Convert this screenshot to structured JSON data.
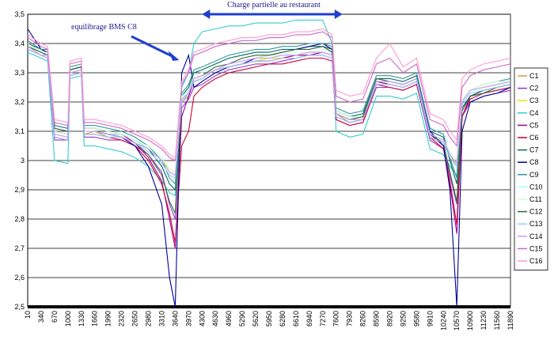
{
  "chart_data": {
    "type": "line",
    "title": "",
    "xlabel": "",
    "ylabel": "",
    "ylim": [
      2.5,
      3.5
    ],
    "yticks": [
      "2,5",
      "2,6",
      "2,7",
      "2,8",
      "2,9",
      "3",
      "3,1",
      "3,2",
      "3,3",
      "3,4",
      "3,5"
    ],
    "xtick_labels": [
      "10",
      "340",
      "670",
      "1000",
      "1330",
      "1660",
      "1990",
      "2320",
      "2650",
      "2980",
      "3310",
      "3640",
      "3970",
      "4300",
      "4630",
      "4960",
      "5290",
      "5620",
      "5950",
      "6280",
      "6610",
      "6940",
      "7270",
      "7600",
      "7930",
      "8260",
      "8590",
      "8920",
      "9250",
      "9580",
      "9910",
      "10240",
      "10570",
      "10900",
      "11230",
      "11560",
      "11890"
    ],
    "grid": "horizontal",
    "legend_position": "right",
    "annotations": [
      {
        "text": "Charge partielle au restaurant",
        "arrow": "double-horizontal",
        "x_range": [
          4300,
          7270
        ]
      },
      {
        "text": "equilibrage BMS C8",
        "arrow": "pointing",
        "target_series": "C8",
        "target_x": 3970
      }
    ],
    "x": [
      10,
      340,
      500,
      670,
      1000,
      1050,
      1330,
      1400,
      1660,
      1990,
      2320,
      2650,
      2980,
      3310,
      3500,
      3640,
      3800,
      3970,
      4100,
      4300,
      4630,
      4960,
      5290,
      5620,
      5950,
      6280,
      6610,
      6940,
      7270,
      7500,
      7600,
      7930,
      8260,
      8590,
      8920,
      9250,
      9580,
      9910,
      10240,
      10400,
      10570,
      10700,
      10900,
      11230,
      11560,
      11890
    ],
    "series": [
      {
        "name": "C1",
        "color": "#c8a040",
        "values": [
          3.4,
          3.37,
          3.36,
          3.08,
          3.07,
          3.3,
          3.31,
          3.09,
          3.1,
          3.08,
          3.08,
          3.06,
          3.04,
          3.0,
          2.96,
          2.95,
          3.2,
          3.22,
          3.27,
          3.28,
          3.31,
          3.32,
          3.33,
          3.34,
          3.34,
          3.35,
          3.36,
          3.36,
          3.37,
          3.36,
          3.16,
          3.13,
          3.14,
          3.27,
          3.26,
          3.25,
          3.27,
          3.08,
          3.06,
          3.02,
          2.98,
          3.2,
          3.24,
          3.25,
          3.26,
          3.27
        ]
      },
      {
        "name": "C2",
        "color": "#9933cc",
        "values": [
          3.38,
          3.36,
          3.35,
          3.07,
          3.07,
          3.29,
          3.3,
          3.08,
          3.08,
          3.07,
          3.07,
          3.05,
          3.02,
          2.96,
          2.85,
          2.8,
          3.18,
          3.21,
          3.25,
          3.26,
          3.29,
          3.31,
          3.32,
          3.33,
          3.33,
          3.34,
          3.35,
          3.36,
          3.36,
          3.35,
          3.14,
          3.12,
          3.13,
          3.25,
          3.25,
          3.24,
          3.26,
          3.07,
          3.04,
          2.95,
          2.85,
          3.15,
          3.2,
          3.22,
          3.23,
          3.24
        ]
      },
      {
        "name": "C3",
        "color": "#e6e600",
        "values": [
          3.39,
          3.36,
          3.36,
          3.09,
          3.08,
          3.3,
          3.31,
          3.1,
          3.1,
          3.09,
          3.08,
          3.06,
          3.04,
          3.0,
          2.97,
          2.96,
          3.2,
          3.23,
          3.27,
          3.28,
          3.31,
          3.32,
          3.33,
          3.34,
          3.35,
          3.35,
          3.36,
          3.37,
          3.37,
          3.36,
          3.16,
          3.14,
          3.14,
          3.27,
          3.27,
          3.26,
          3.28,
          3.09,
          3.07,
          3.03,
          3.0,
          3.2,
          3.24,
          3.25,
          3.26,
          3.27
        ]
      },
      {
        "name": "C4",
        "color": "#33cccc",
        "values": [
          3.37,
          3.35,
          3.34,
          3.0,
          2.99,
          3.28,
          3.29,
          3.05,
          3.05,
          3.04,
          3.03,
          3.01,
          2.98,
          2.93,
          2.89,
          2.88,
          3.25,
          3.3,
          3.4,
          3.44,
          3.45,
          3.46,
          3.46,
          3.47,
          3.47,
          3.47,
          3.48,
          3.48,
          3.48,
          3.4,
          3.1,
          3.08,
          3.09,
          3.22,
          3.22,
          3.21,
          3.23,
          3.04,
          3.02,
          2.98,
          2.95,
          3.18,
          3.22,
          3.23,
          3.24,
          3.25
        ]
      },
      {
        "name": "C5",
        "color": "#990099",
        "values": [
          3.39,
          3.37,
          3.36,
          3.1,
          3.09,
          3.3,
          3.31,
          3.1,
          3.1,
          3.09,
          3.09,
          3.06,
          3.01,
          2.93,
          2.8,
          2.7,
          3.15,
          3.22,
          3.27,
          3.28,
          3.31,
          3.32,
          3.33,
          3.34,
          3.34,
          3.35,
          3.36,
          3.36,
          3.37,
          3.36,
          3.15,
          3.13,
          3.14,
          3.27,
          3.26,
          3.25,
          3.27,
          3.09,
          3.05,
          2.92,
          2.75,
          3.15,
          3.22,
          3.24,
          3.25,
          3.26
        ]
      },
      {
        "name": "C6",
        "color": "#cc0033",
        "values": [
          3.38,
          3.36,
          3.35,
          3.08,
          3.07,
          3.29,
          3.3,
          3.09,
          3.09,
          3.08,
          3.07,
          3.05,
          3.0,
          2.92,
          2.82,
          2.72,
          3.05,
          3.1,
          3.22,
          3.25,
          3.28,
          3.3,
          3.31,
          3.32,
          3.33,
          3.33,
          3.34,
          3.35,
          3.35,
          3.34,
          3.14,
          3.12,
          3.13,
          3.26,
          3.25,
          3.24,
          3.26,
          3.08,
          3.04,
          2.93,
          2.78,
          3.15,
          3.21,
          3.23,
          3.24,
          3.25
        ]
      },
      {
        "name": "C7",
        "color": "#006666",
        "values": [
          3.4,
          3.38,
          3.37,
          3.11,
          3.1,
          3.31,
          3.32,
          3.11,
          3.11,
          3.1,
          3.09,
          3.07,
          3.04,
          2.98,
          2.92,
          2.9,
          3.22,
          3.25,
          3.3,
          3.31,
          3.33,
          3.35,
          3.36,
          3.37,
          3.37,
          3.38,
          3.38,
          3.39,
          3.39,
          3.38,
          3.17,
          3.15,
          3.16,
          3.28,
          3.28,
          3.27,
          3.29,
          3.1,
          3.08,
          3.0,
          2.92,
          3.18,
          3.22,
          3.24,
          3.25,
          3.26
        ]
      },
      {
        "name": "C8",
        "color": "#000099",
        "values": [
          3.45,
          3.38,
          3.37,
          3.12,
          3.11,
          3.31,
          3.32,
          3.1,
          3.1,
          3.09,
          3.08,
          3.05,
          2.98,
          2.85,
          2.6,
          2.5,
          3.3,
          3.36,
          3.25,
          3.27,
          3.3,
          3.32,
          3.33,
          3.35,
          3.36,
          3.37,
          3.38,
          3.39,
          3.4,
          3.38,
          3.16,
          3.14,
          3.15,
          3.28,
          3.27,
          3.26,
          3.28,
          3.1,
          3.05,
          2.9,
          2.5,
          3.1,
          3.2,
          3.22,
          3.23,
          3.25
        ]
      },
      {
        "name": "C9",
        "color": "#339999",
        "values": [
          3.41,
          3.38,
          3.38,
          3.12,
          3.11,
          3.32,
          3.33,
          3.12,
          3.12,
          3.11,
          3.1,
          3.08,
          3.05,
          3.0,
          2.94,
          2.92,
          3.23,
          3.26,
          3.31,
          3.32,
          3.34,
          3.36,
          3.37,
          3.38,
          3.38,
          3.39,
          3.39,
          3.4,
          3.4,
          3.39,
          3.18,
          3.16,
          3.17,
          3.29,
          3.29,
          3.28,
          3.3,
          3.11,
          3.09,
          3.01,
          2.94,
          3.2,
          3.24,
          3.26,
          3.27,
          3.28
        ]
      },
      {
        "name": "C10",
        "color": "#99ffff",
        "values": [
          3.39,
          3.37,
          3.36,
          3.09,
          3.08,
          3.3,
          3.31,
          3.1,
          3.1,
          3.09,
          3.09,
          3.07,
          3.04,
          3.0,
          2.96,
          2.95,
          3.21,
          3.24,
          3.28,
          3.29,
          3.32,
          3.33,
          3.34,
          3.35,
          3.35,
          3.36,
          3.36,
          3.37,
          3.37,
          3.36,
          3.16,
          3.14,
          3.15,
          3.27,
          3.27,
          3.26,
          3.28,
          3.09,
          3.07,
          3.02,
          2.99,
          3.2,
          3.24,
          3.25,
          3.26,
          3.27
        ]
      },
      {
        "name": "C11",
        "color": "#ccffcc",
        "values": [
          3.4,
          3.37,
          3.37,
          3.1,
          3.09,
          3.3,
          3.31,
          3.11,
          3.11,
          3.1,
          3.09,
          3.07,
          3.05,
          3.01,
          2.97,
          2.96,
          3.22,
          3.24,
          3.29,
          3.3,
          3.32,
          3.33,
          3.34,
          3.35,
          3.36,
          3.36,
          3.37,
          3.37,
          3.38,
          3.37,
          3.17,
          3.15,
          3.15,
          3.28,
          3.27,
          3.26,
          3.28,
          3.09,
          3.07,
          3.03,
          3.0,
          3.21,
          3.24,
          3.26,
          3.27,
          3.27
        ]
      },
      {
        "name": "C12",
        "color": "#336633",
        "values": [
          3.39,
          3.37,
          3.36,
          3.11,
          3.1,
          3.31,
          3.32,
          3.1,
          3.1,
          3.09,
          3.08,
          3.06,
          3.02,
          2.95,
          2.86,
          2.82,
          3.2,
          3.23,
          3.28,
          3.29,
          3.32,
          3.33,
          3.35,
          3.36,
          3.36,
          3.37,
          3.38,
          3.38,
          3.39,
          3.37,
          3.16,
          3.14,
          3.15,
          3.28,
          3.27,
          3.26,
          3.28,
          3.09,
          3.06,
          2.96,
          2.86,
          3.17,
          3.22,
          3.23,
          3.25,
          3.26
        ]
      },
      {
        "name": "C13",
        "color": "#99ccff",
        "values": [
          3.38,
          3.36,
          3.35,
          3.08,
          3.07,
          3.29,
          3.3,
          3.09,
          3.09,
          3.08,
          3.08,
          3.06,
          3.03,
          2.99,
          2.95,
          2.94,
          3.2,
          3.23,
          3.27,
          3.28,
          3.31,
          3.32,
          3.33,
          3.34,
          3.34,
          3.35,
          3.35,
          3.36,
          3.36,
          3.35,
          3.15,
          3.13,
          3.14,
          3.26,
          3.26,
          3.25,
          3.27,
          3.08,
          3.06,
          3.01,
          2.98,
          3.19,
          3.23,
          3.24,
          3.25,
          3.26
        ]
      },
      {
        "name": "C14",
        "color": "#cc99ff",
        "values": [
          3.39,
          3.36,
          3.36,
          3.09,
          3.08,
          3.3,
          3.31,
          3.1,
          3.1,
          3.09,
          3.08,
          3.06,
          3.04,
          3.0,
          2.96,
          2.95,
          3.21,
          3.23,
          3.28,
          3.29,
          3.31,
          3.33,
          3.34,
          3.35,
          3.35,
          3.36,
          3.36,
          3.37,
          3.37,
          3.36,
          3.16,
          3.14,
          3.14,
          3.27,
          3.27,
          3.26,
          3.28,
          3.09,
          3.07,
          3.02,
          2.99,
          3.2,
          3.24,
          3.25,
          3.26,
          3.27
        ]
      },
      {
        "name": "C15",
        "color": "#cc66cc",
        "values": [
          3.42,
          3.39,
          3.38,
          3.13,
          3.12,
          3.33,
          3.34,
          3.13,
          3.13,
          3.12,
          3.11,
          3.09,
          3.07,
          3.04,
          3.01,
          3.0,
          3.26,
          3.3,
          3.36,
          3.37,
          3.39,
          3.4,
          3.41,
          3.41,
          3.42,
          3.42,
          3.43,
          3.43,
          3.44,
          3.42,
          3.22,
          3.2,
          3.21,
          3.33,
          3.35,
          3.3,
          3.33,
          3.14,
          3.12,
          3.08,
          3.05,
          3.25,
          3.29,
          3.31,
          3.32,
          3.33
        ]
      },
      {
        "name": "C16",
        "color": "#ff99cc",
        "values": [
          3.43,
          3.4,
          3.39,
          3.14,
          3.13,
          3.34,
          3.35,
          3.14,
          3.14,
          3.13,
          3.12,
          3.1,
          3.08,
          3.05,
          3.02,
          3.01,
          3.27,
          3.31,
          3.37,
          3.38,
          3.4,
          3.41,
          3.42,
          3.42,
          3.43,
          3.43,
          3.44,
          3.44,
          3.45,
          3.43,
          3.24,
          3.22,
          3.23,
          3.35,
          3.4,
          3.32,
          3.35,
          3.16,
          3.14,
          3.1,
          3.07,
          3.28,
          3.31,
          3.33,
          3.34,
          3.35
        ]
      }
    ]
  }
}
